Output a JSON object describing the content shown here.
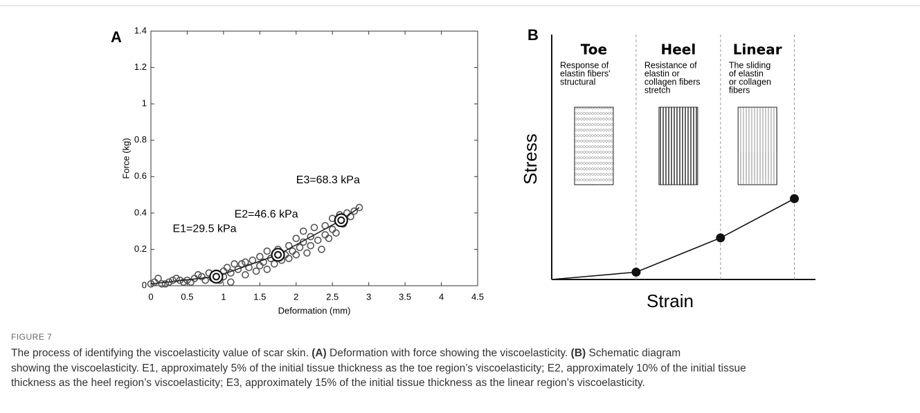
{
  "chart_data": [
    {
      "type": "scatter",
      "panel_label": "A",
      "x_label": "Deformation (mm)",
      "y_label": "Force (kg)",
      "xlim": [
        0,
        4.5
      ],
      "xticks": [
        0,
        0.5,
        1,
        1.5,
        2,
        2.5,
        3,
        3.5,
        4,
        4.5
      ],
      "ylim": [
        0,
        1.4
      ],
      "yticks": [
        0,
        0.2,
        0.4,
        0.6,
        0.8,
        1,
        1.2,
        1.4
      ],
      "color": "#555555",
      "x": [
        0,
        0.05,
        0.1,
        0.15,
        0.2,
        0.25,
        0.3,
        0.35,
        0.4,
        0.45,
        0.5,
        0.55,
        0.6,
        0.65,
        0.7,
        0.75,
        0.8,
        0.85,
        0.9,
        0.95,
        1.0,
        1.0,
        1.05,
        1.1,
        1.1,
        1.15,
        1.2,
        1.25,
        1.3,
        1.3,
        1.35,
        1.4,
        1.45,
        1.5,
        1.5,
        1.55,
        1.6,
        1.6,
        1.65,
        1.7,
        1.75,
        1.8,
        1.85,
        1.9,
        1.9,
        1.95,
        2.0,
        2.0,
        2.05,
        2.1,
        2.1,
        2.15,
        2.2,
        2.2,
        2.25,
        2.3,
        2.35,
        2.4,
        2.4,
        2.45,
        2.5,
        2.5,
        2.55,
        2.6,
        2.65,
        2.7,
        2.75,
        2.8,
        2.87
      ],
      "values": [
        0.01,
        0.02,
        0.04,
        0.01,
        0.01,
        0.02,
        0.03,
        0.04,
        0.03,
        0.02,
        0.03,
        0.02,
        0.04,
        0.06,
        0.05,
        0.03,
        0.07,
        0.04,
        0.06,
        0.03,
        0.08,
        0.05,
        0.1,
        0.02,
        0.07,
        0.12,
        0.09,
        0.12,
        0.06,
        0.13,
        0.1,
        0.14,
        0.08,
        0.11,
        0.16,
        0.13,
        0.19,
        0.09,
        0.15,
        0.12,
        0.2,
        0.14,
        0.17,
        0.22,
        0.15,
        0.19,
        0.26,
        0.17,
        0.21,
        0.3,
        0.24,
        0.18,
        0.27,
        0.22,
        0.32,
        0.25,
        0.2,
        0.28,
        0.33,
        0.26,
        0.31,
        0.37,
        0.29,
        0.39,
        0.34,
        0.4,
        0.38,
        0.41,
        0.43
      ],
      "fit": {
        "x": [
          0,
          0.9,
          1.75,
          2.62,
          2.87
        ],
        "values": [
          0.01,
          0.05,
          0.17,
          0.36,
          0.43
        ]
      },
      "highlights": {
        "x": [
          0.9,
          1.75,
          2.62
        ],
        "values": [
          0.05,
          0.17,
          0.36
        ]
      },
      "annotations": [
        {
          "text": "E1=29.5 kPa",
          "x": 0.3,
          "y": 0.31
        },
        {
          "text": "E2=46.6 kPa",
          "x": 1.15,
          "y": 0.39
        },
        {
          "text": "E3=68.3 kPa",
          "x": 2.0,
          "y": 0.58
        }
      ]
    },
    {
      "type": "line",
      "panel_label": "B",
      "x_label": "Strain",
      "y_label": "Stress",
      "xlim": [
        0,
        1
      ],
      "ylim": [
        0,
        1
      ],
      "x": [
        0,
        0.32,
        0.64,
        0.92
      ],
      "values": [
        0,
        0.03,
        0.17,
        0.33
      ],
      "dividers": [
        0.32,
        0.64,
        0.92
      ],
      "regions": [
        {
          "name": "Toe",
          "description": [
            "Response of",
            "elastin fibers'",
            "structural"
          ]
        },
        {
          "name": "Heel",
          "description": [
            "Resistance of",
            "elastin or",
            "collagen fibers",
            "stretch"
          ]
        },
        {
          "name": "Linear",
          "description": [
            "The sliding",
            "of elastin",
            "or collagen",
            "fibers"
          ]
        }
      ]
    }
  ],
  "caption": {
    "label": "FIGURE 7",
    "lines": [
      [
        {
          "text": "The process of identifying the viscoelasticity value of scar skin. ",
          "bold": false
        },
        {
          "text": "(A)",
          "bold": true
        },
        {
          "text": " Deformation with force showing the viscoelasticity. ",
          "bold": false
        },
        {
          "text": "(B)",
          "bold": true
        },
        {
          "text": " Schematic diagram",
          "bold": false
        }
      ],
      [
        {
          "text": "showing the viscoelasticity. E1, approximately 5% of the initial tissue thickness as the toe region’s viscoelasticity; E2, approximately 10% of the initial tissue",
          "bold": false
        }
      ],
      [
        {
          "text": "thickness as the heel region’s viscoelasticity; E3, approximately 15% of the initial tissue thickness as the linear region’s viscoelasticity.",
          "bold": false
        }
      ]
    ]
  }
}
